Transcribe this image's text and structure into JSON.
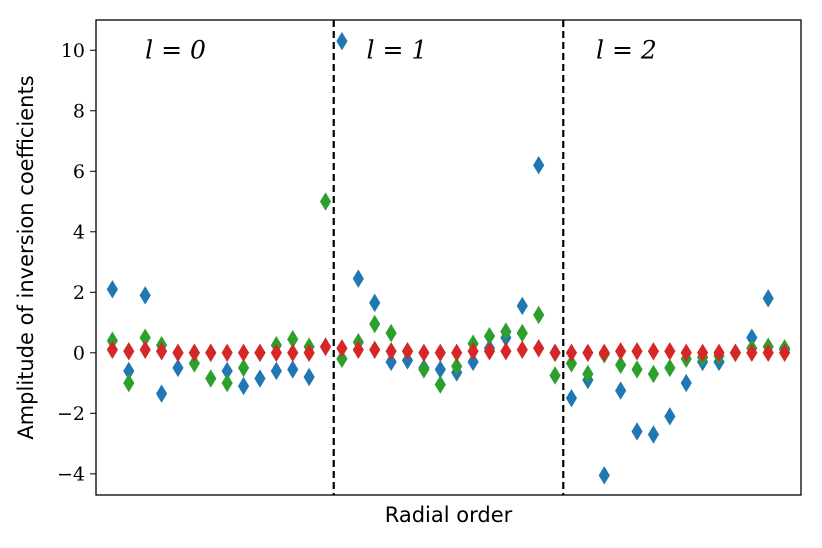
{
  "chart_data": {
    "type": "scatter",
    "xlabel": "Radial order",
    "ylabel": "Amplitude of inversion coefficients",
    "ylim": [
      -4.7,
      11.0
    ],
    "yticks": [
      -4,
      -2,
      0,
      2,
      4,
      6,
      8,
      10
    ],
    "ytick_labels": [
      "−4",
      "−2",
      "0",
      "2",
      "4",
      "6",
      "8",
      "10"
    ],
    "xlim": [
      -1.0,
      42.0
    ],
    "xticks_visible": false,
    "grid": false,
    "marker": "diamond",
    "dividers": [
      13.5,
      27.5
    ],
    "section_labels": [
      {
        "text": "l = 0",
        "x": 2.0,
        "y": 10.0
      },
      {
        "text": "l = 1",
        "x": 15.5,
        "y": 10.0
      },
      {
        "text": "l = 2",
        "x": 29.5,
        "y": 10.0
      }
    ],
    "series": [
      {
        "color": "#1f77b4",
        "x": [
          0,
          1,
          2,
          3,
          4,
          5,
          6,
          7,
          8,
          9,
          10,
          11,
          12,
          13,
          14,
          15,
          16,
          17,
          18,
          19,
          20,
          21,
          22,
          23,
          24,
          25,
          26,
          27,
          28,
          29,
          30,
          31,
          32,
          33,
          34,
          35,
          36,
          37,
          38,
          39,
          40,
          41
        ],
        "values": [
          2.1,
          -0.6,
          1.9,
          -1.35,
          -0.5,
          0.0,
          0.0,
          -0.6,
          -1.1,
          -0.85,
          -0.6,
          -0.55,
          -0.8,
          0.2,
          10.3,
          2.45,
          1.65,
          -0.3,
          -0.25,
          -0.5,
          -0.55,
          -0.65,
          -0.3,
          0.15,
          0.5,
          1.55,
          6.2,
          0.0,
          -1.5,
          -0.9,
          -4.05,
          -1.25,
          -2.6,
          -2.7,
          -2.1,
          -1.0,
          -0.3,
          -0.3,
          0.0,
          0.5,
          1.8,
          0.1
        ]
      },
      {
        "color": "#2ca02c",
        "x": [
          0,
          1,
          2,
          3,
          4,
          5,
          6,
          7,
          8,
          9,
          10,
          11,
          12,
          13,
          14,
          15,
          16,
          17,
          18,
          19,
          20,
          21,
          22,
          23,
          24,
          25,
          26,
          27,
          28,
          29,
          30,
          31,
          32,
          33,
          34,
          35,
          36,
          37,
          38,
          39,
          40,
          41
        ],
        "values": [
          0.4,
          -1.0,
          0.5,
          0.25,
          0.0,
          -0.35,
          -0.85,
          -1.0,
          -0.5,
          0.0,
          0.25,
          0.45,
          0.2,
          5.0,
          -0.2,
          0.35,
          0.95,
          0.65,
          0.05,
          -0.55,
          -1.05,
          -0.45,
          0.3,
          0.55,
          0.7,
          0.65,
          1.25,
          -0.75,
          -0.35,
          -0.7,
          -0.05,
          -0.4,
          -0.55,
          -0.7,
          -0.5,
          -0.2,
          -0.15,
          -0.1,
          0.0,
          0.15,
          0.2,
          0.15
        ]
      },
      {
        "color": "#d62728",
        "x": [
          0,
          1,
          2,
          3,
          4,
          5,
          6,
          7,
          8,
          9,
          10,
          11,
          12,
          13,
          14,
          15,
          16,
          17,
          18,
          19,
          20,
          21,
          22,
          23,
          24,
          25,
          26,
          27,
          28,
          29,
          30,
          31,
          32,
          33,
          34,
          35,
          36,
          37,
          38,
          39,
          40,
          41
        ],
        "values": [
          0.1,
          0.05,
          0.1,
          0.05,
          0.0,
          0.0,
          0.0,
          0.0,
          0.0,
          0.0,
          0.0,
          0.0,
          0.0,
          0.2,
          0.15,
          0.1,
          0.1,
          0.05,
          0.05,
          0.0,
          0.0,
          0.0,
          0.05,
          0.05,
          0.05,
          0.1,
          0.15,
          0.0,
          0.0,
          0.0,
          0.0,
          0.05,
          0.05,
          0.05,
          0.05,
          0.0,
          0.0,
          0.0,
          0.0,
          0.0,
          0.0,
          0.0
        ]
      }
    ]
  }
}
